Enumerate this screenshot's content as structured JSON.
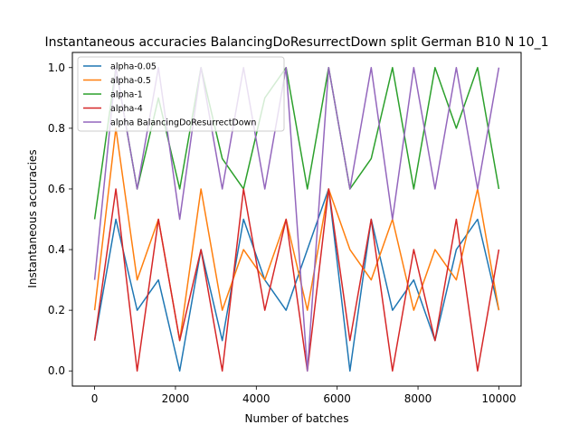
{
  "chart_data": {
    "type": "line",
    "title": "Instantaneous accuracies BalancingDoResurrectDown split German B10 N 10_1",
    "xlabel": "Number of batches",
    "ylabel": "Instantaneous accuracies",
    "xlim": [
      -550,
      10550
    ],
    "ylim": [
      -0.05,
      1.05
    ],
    "xticks": [
      {
        "value": 0,
        "label": "0"
      },
      {
        "value": 2000,
        "label": "2000"
      },
      {
        "value": 4000,
        "label": "4000"
      },
      {
        "value": 6000,
        "label": "6000"
      },
      {
        "value": 8000,
        "label": "8000"
      },
      {
        "value": 10000,
        "label": "10000"
      }
    ],
    "yticks": [
      {
        "value": 0.0,
        "label": "0.0"
      },
      {
        "value": 0.2,
        "label": "0.2"
      },
      {
        "value": 0.4,
        "label": "0.4"
      },
      {
        "value": 0.6,
        "label": "0.6"
      },
      {
        "value": 0.8,
        "label": "0.8"
      },
      {
        "value": 1.0,
        "label": "1.0"
      }
    ],
    "grid": false,
    "legend_position": "top-left",
    "x_range": [
      0,
      10000
    ],
    "series": [
      {
        "name": "alpha-0.05",
        "color": "#1f77b4",
        "values": [
          0.1,
          0.5,
          0.2,
          0.3,
          0.0,
          0.4,
          0.1,
          0.5,
          0.3,
          0.2,
          0.4,
          0.6,
          0.0,
          0.5,
          0.2,
          0.3,
          0.1,
          0.4,
          0.5,
          0.2
        ]
      },
      {
        "name": "alpha-0.5",
        "color": "#ff7f0e",
        "values": [
          0.2,
          0.8,
          0.3,
          0.5,
          0.1,
          0.6,
          0.2,
          0.4,
          0.3,
          0.5,
          0.2,
          0.6,
          0.4,
          0.3,
          0.5,
          0.2,
          0.4,
          0.3,
          0.6,
          0.2
        ]
      },
      {
        "name": "alpha-1",
        "color": "#2ca02c",
        "values": [
          0.5,
          1.0,
          0.6,
          0.9,
          0.6,
          1.0,
          0.7,
          0.6,
          0.9,
          1.0,
          0.6,
          1.0,
          0.6,
          0.7,
          1.0,
          0.6,
          1.0,
          0.8,
          1.0,
          0.6
        ]
      },
      {
        "name": "alpha-4",
        "color": "#d62728",
        "values": [
          0.1,
          0.6,
          0.0,
          0.5,
          0.1,
          0.4,
          0.0,
          0.6,
          0.2,
          0.5,
          0.0,
          0.6,
          0.1,
          0.5,
          0.0,
          0.4,
          0.1,
          0.5,
          0.0,
          0.4
        ]
      },
      {
        "name": "alpha BalancingDoResurrectDown",
        "color": "#9467bd",
        "values": [
          0.3,
          1.0,
          0.6,
          1.0,
          0.5,
          1.0,
          0.6,
          1.0,
          0.6,
          1.0,
          0.0,
          1.0,
          0.6,
          1.0,
          0.5,
          1.0,
          0.6,
          1.0,
          0.6,
          1.0
        ]
      }
    ]
  }
}
